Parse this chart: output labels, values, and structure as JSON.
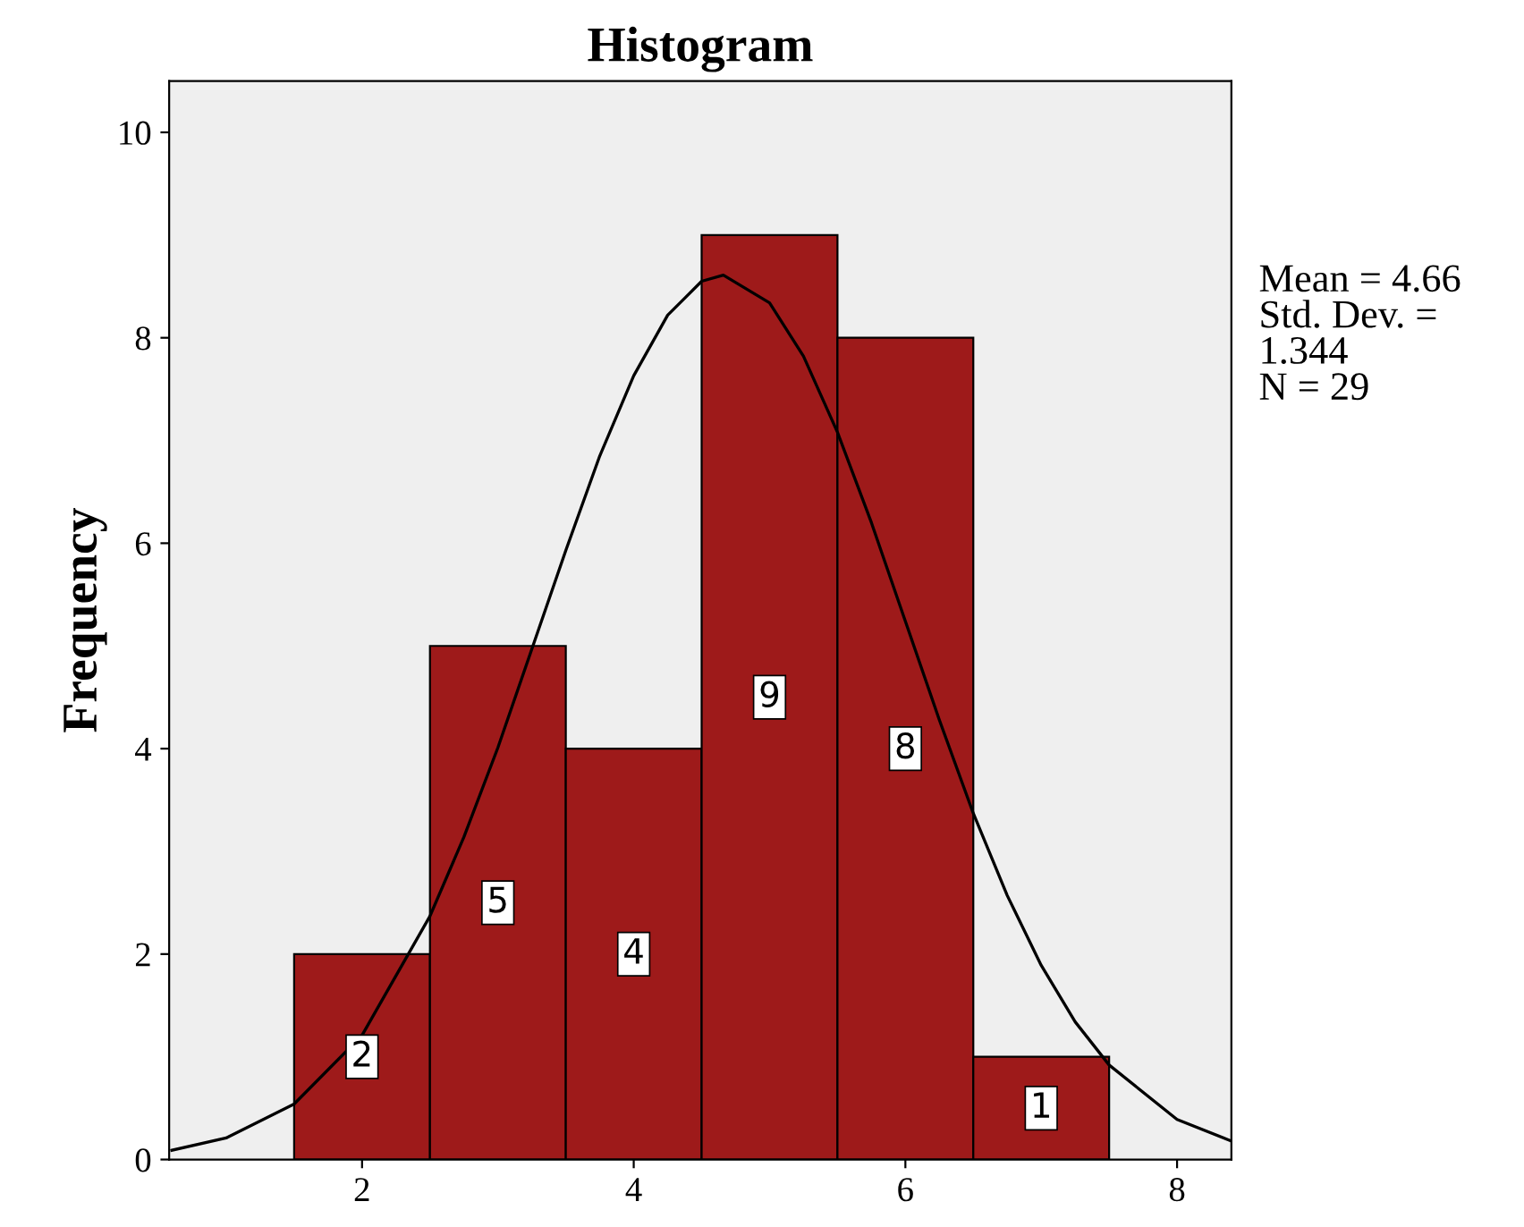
{
  "chart_data": {
    "type": "histogram",
    "title": "Histogram",
    "ylabel": "Frequency",
    "bins": [
      1.5,
      2.5,
      3.5,
      4.5,
      5.5,
      6.5,
      7.5
    ],
    "values": [
      2,
      5,
      4,
      9,
      8,
      1
    ],
    "color": "#9e1a1a",
    "value_labels": [
      "2",
      "5",
      "4",
      "9",
      "8",
      "1"
    ],
    "xlim": [
      0.58,
      8.4
    ],
    "ylim": [
      0,
      10.5
    ],
    "xticks": [
      2,
      4,
      6,
      8
    ],
    "yticks": [
      0,
      2,
      4,
      6,
      8,
      10
    ],
    "grid": false,
    "series": [
      {
        "type": "line",
        "color": "#000000",
        "x": [
          0.6,
          1.0,
          1.5,
          2.0,
          2.5,
          2.75,
          3.0,
          3.25,
          3.5,
          3.75,
          4.0,
          4.25,
          4.5,
          4.66,
          5.0,
          5.25,
          5.5,
          5.75,
          6.0,
          6.25,
          6.5,
          6.75,
          7.0,
          7.25,
          7.5,
          8.0,
          8.4
        ],
        "values": [
          0.09,
          0.21,
          0.54,
          1.21,
          2.37,
          3.14,
          4.01,
          4.97,
          5.93,
          6.85,
          7.63,
          8.22,
          8.55,
          8.61,
          8.34,
          7.82,
          7.08,
          6.2,
          5.24,
          4.28,
          3.37,
          2.57,
          1.89,
          1.34,
          0.92,
          0.39,
          0.18
        ]
      }
    ],
    "annotations": [
      "Mean = 4.66\nStd. Dev. =\n1.344\nN = 29"
    ]
  }
}
